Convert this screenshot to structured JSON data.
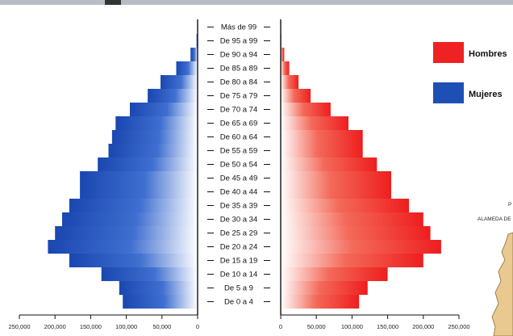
{
  "chart_data": {
    "type": "bar",
    "orientation": "horizontal-population-pyramid",
    "categories": [
      "Más de 99",
      "De 95 a 99",
      "De 90 a 94",
      "De 85 a 89",
      "De 80 a 84",
      "De 75 a 79",
      "De 70 a 74",
      "De 65 a 69",
      "De 60 a 64",
      "De 55 a 59",
      "De 50 a 54",
      "De 45 a 49",
      "De 40 a 44",
      "De 35 a 39",
      "De 30 a 34",
      "De 25 a 29",
      "De 20 a 24",
      "De 15 a 19",
      "De 10 a 14",
      "De 5 a 9",
      "De 0 a 4"
    ],
    "series": [
      {
        "name": "Mujeres",
        "side": "left",
        "color": "#1e4fb4",
        "values": [
          500,
          1500,
          10000,
          30000,
          52000,
          70000,
          95000,
          115000,
          120000,
          125000,
          140000,
          165000,
          165000,
          180000,
          190000,
          200000,
          210000,
          180000,
          135000,
          110000,
          105000
        ]
      },
      {
        "name": "Hombres",
        "side": "right",
        "color": "#ee2222",
        "values": [
          300,
          800,
          5000,
          12000,
          25000,
          42000,
          70000,
          95000,
          115000,
          115000,
          135000,
          155000,
          155000,
          180000,
          200000,
          210000,
          225000,
          200000,
          150000,
          122000,
          110000
        ]
      }
    ],
    "xlim": [
      0,
      250000
    ],
    "x_ticks": [
      "250,000",
      "200,000",
      "150,000",
      "100,000",
      "50,000",
      "0"
    ],
    "x_ticks_right": [
      "0",
      "50,000",
      "100,000",
      "150,000",
      "200,000",
      "250,000"
    ],
    "legend_position": "right"
  },
  "legend": {
    "hombres": "Hombres",
    "mujeres": "Mujeres"
  },
  "map_labels": {
    "p": "P",
    "alameda": "ALAMEDA DE"
  }
}
